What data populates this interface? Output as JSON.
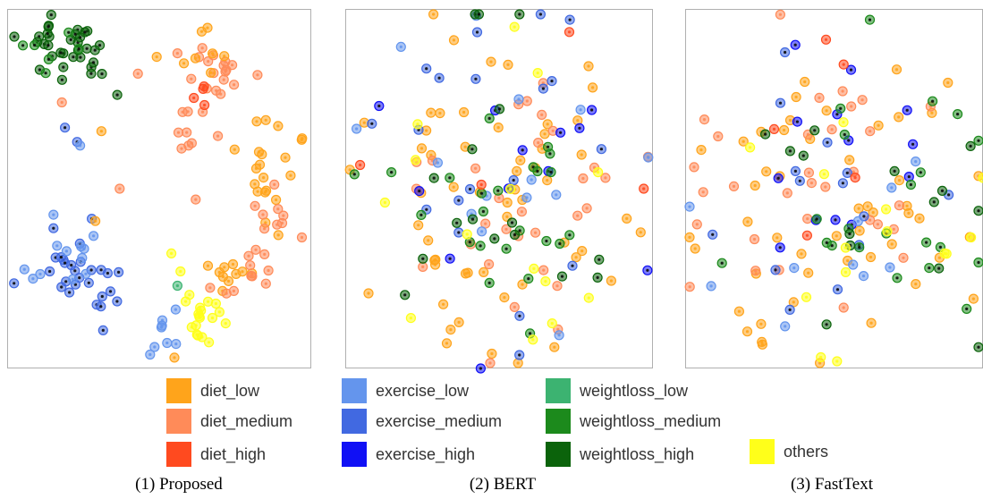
{
  "chart_data": [
    {
      "type": "scatter",
      "panel_caption": "(1) Proposed",
      "clusters": [
        {
          "cls": "weightloss_high",
          "cx": 0.2,
          "cy": 0.12,
          "sx": 0.07,
          "sy": 0.06,
          "n": 34
        },
        {
          "cls": "weightloss_medium",
          "cx": 0.15,
          "cy": 0.14,
          "sx": 0.06,
          "sy": 0.05,
          "n": 6
        },
        {
          "cls": "diet_medium",
          "cx": 0.68,
          "cy": 0.19,
          "sx": 0.06,
          "sy": 0.06,
          "n": 22
        },
        {
          "cls": "diet_low",
          "cx": 0.64,
          "cy": 0.13,
          "sx": 0.06,
          "sy": 0.05,
          "n": 8
        },
        {
          "cls": "diet_high",
          "cx": 0.63,
          "cy": 0.23,
          "sx": 0.03,
          "sy": 0.02,
          "n": 4
        },
        {
          "cls": "diet_low",
          "cx": 0.86,
          "cy": 0.45,
          "sx": 0.05,
          "sy": 0.09,
          "n": 20
        },
        {
          "cls": "diet_medium",
          "cx": 0.88,
          "cy": 0.58,
          "sx": 0.06,
          "sy": 0.07,
          "n": 12
        },
        {
          "cls": "diet_medium",
          "cx": 0.58,
          "cy": 0.36,
          "sx": 0.02,
          "sy": 0.02,
          "n": 5
        },
        {
          "cls": "diet_low",
          "cx": 0.75,
          "cy": 0.74,
          "sx": 0.04,
          "sy": 0.03,
          "n": 10
        },
        {
          "cls": "diet_medium",
          "cx": 0.76,
          "cy": 0.76,
          "sx": 0.04,
          "sy": 0.03,
          "n": 8
        },
        {
          "cls": "exercise_medium",
          "cx": 0.22,
          "cy": 0.71,
          "sx": 0.07,
          "sy": 0.06,
          "n": 22
        },
        {
          "cls": "exercise_low",
          "cx": 0.2,
          "cy": 0.69,
          "sx": 0.08,
          "sy": 0.07,
          "n": 12
        },
        {
          "cls": "exercise_low",
          "cx": 0.5,
          "cy": 0.91,
          "sx": 0.05,
          "sy": 0.04,
          "n": 8
        },
        {
          "cls": "exercise_medium",
          "cx": 0.34,
          "cy": 0.82,
          "sx": 0.05,
          "sy": 0.04,
          "n": 5
        },
        {
          "cls": "others",
          "cx": 0.65,
          "cy": 0.88,
          "sx": 0.04,
          "sy": 0.04,
          "n": 18
        }
      ],
      "singles": [
        {
          "cls": "diet_medium",
          "x": 0.43,
          "y": 0.18
        },
        {
          "cls": "diet_medium",
          "x": 0.18,
          "y": 0.26
        },
        {
          "cls": "diet_low",
          "x": 0.31,
          "y": 0.34
        },
        {
          "cls": "exercise_medium",
          "x": 0.23,
          "y": 0.37
        },
        {
          "cls": "exercise_low",
          "x": 0.24,
          "y": 0.38
        },
        {
          "cls": "diet_medium",
          "x": 0.37,
          "y": 0.5
        },
        {
          "cls": "diet_medium",
          "x": 0.62,
          "y": 0.53
        },
        {
          "cls": "diet_low",
          "x": 0.29,
          "y": 0.59
        },
        {
          "cls": "others",
          "x": 0.54,
          "y": 0.68
        },
        {
          "cls": "others",
          "x": 0.57,
          "y": 0.73
        },
        {
          "cls": "weightloss_low",
          "x": 0.56,
          "y": 0.77
        },
        {
          "cls": "diet_low",
          "x": 0.55,
          "y": 0.97
        },
        {
          "cls": "exercise_medium",
          "x": 0.19,
          "y": 0.33
        },
        {
          "cls": "exercise_medium",
          "x": 0.14,
          "y": 0.73
        }
      ],
      "seed": 11,
      "xlim": [
        0,
        1
      ],
      "ylim": [
        0,
        1
      ],
      "grid": false
    },
    {
      "type": "scatter",
      "panel_caption": "(2) BERT",
      "clusters": [
        {
          "cls": "diet_low",
          "cx": 0.5,
          "cy": 0.5,
          "sx": 0.2,
          "sy": 0.2,
          "n": 55
        },
        {
          "cls": "diet_medium",
          "cx": 0.48,
          "cy": 0.52,
          "sx": 0.2,
          "sy": 0.2,
          "n": 30
        },
        {
          "cls": "exercise_medium",
          "cx": 0.45,
          "cy": 0.4,
          "sx": 0.22,
          "sy": 0.22,
          "n": 18
        },
        {
          "cls": "exercise_low",
          "cx": 0.5,
          "cy": 0.45,
          "sx": 0.22,
          "sy": 0.22,
          "n": 14
        },
        {
          "cls": "exercise_high",
          "cx": 0.5,
          "cy": 0.4,
          "sx": 0.22,
          "sy": 0.22,
          "n": 10
        },
        {
          "cls": "weightloss_medium",
          "cx": 0.52,
          "cy": 0.55,
          "sx": 0.18,
          "sy": 0.2,
          "n": 22
        },
        {
          "cls": "weightloss_high",
          "cx": 0.55,
          "cy": 0.55,
          "sx": 0.2,
          "sy": 0.22,
          "n": 16
        },
        {
          "cls": "others",
          "cx": 0.5,
          "cy": 0.5,
          "sx": 0.25,
          "sy": 0.25,
          "n": 12
        },
        {
          "cls": "diet_high",
          "cx": 0.55,
          "cy": 0.4,
          "sx": 0.2,
          "sy": 0.15,
          "n": 3
        }
      ],
      "singles": [
        {
          "cls": "others",
          "x": 0.55,
          "y": 0.05
        },
        {
          "cls": "exercise_medium",
          "x": 0.73,
          "y": 0.03
        },
        {
          "cls": "weightloss_medium",
          "x": 0.03,
          "y": 0.46
        },
        {
          "cls": "diet_high",
          "x": 0.97,
          "y": 0.5
        },
        {
          "cls": "exercise_high",
          "x": 0.44,
          "y": 1.0
        },
        {
          "cls": "exercise_high",
          "x": 0.11,
          "y": 0.27
        },
        {
          "cls": "diet_low",
          "x": 0.33,
          "y": 0.93
        },
        {
          "cls": "others",
          "x": 0.61,
          "y": 0.92
        }
      ],
      "seed": 23,
      "xlim": [
        0,
        1
      ],
      "ylim": [
        0,
        1
      ],
      "grid": false
    },
    {
      "type": "scatter",
      "panel_caption": "(3) FastText",
      "clusters": [
        {
          "cls": "diet_low",
          "cx": 0.5,
          "cy": 0.55,
          "sx": 0.22,
          "sy": 0.2,
          "n": 50
        },
        {
          "cls": "diet_medium",
          "cx": 0.45,
          "cy": 0.5,
          "sx": 0.25,
          "sy": 0.22,
          "n": 30
        },
        {
          "cls": "exercise_medium",
          "cx": 0.5,
          "cy": 0.55,
          "sx": 0.22,
          "sy": 0.18,
          "n": 14
        },
        {
          "cls": "exercise_high",
          "cx": 0.5,
          "cy": 0.5,
          "sx": 0.22,
          "sy": 0.18,
          "n": 12
        },
        {
          "cls": "exercise_low",
          "cx": 0.45,
          "cy": 0.6,
          "sx": 0.22,
          "sy": 0.18,
          "n": 10
        },
        {
          "cls": "weightloss_medium",
          "cx": 0.6,
          "cy": 0.6,
          "sx": 0.2,
          "sy": 0.18,
          "n": 20
        },
        {
          "cls": "weightloss_high",
          "cx": 0.6,
          "cy": 0.55,
          "sx": 0.2,
          "sy": 0.22,
          "n": 14
        },
        {
          "cls": "others",
          "cx": 0.55,
          "cy": 0.6,
          "sx": 0.22,
          "sy": 0.2,
          "n": 12
        },
        {
          "cls": "diet_high",
          "cx": 0.55,
          "cy": 0.4,
          "sx": 0.2,
          "sy": 0.15,
          "n": 5
        }
      ],
      "singles": [
        {
          "cls": "weightloss_medium",
          "x": 0.62,
          "y": 0.03
        },
        {
          "cls": "exercise_high",
          "x": 0.37,
          "y": 0.1
        },
        {
          "cls": "diet_medium",
          "x": 0.03,
          "y": 0.44
        },
        {
          "cls": "others",
          "x": 0.51,
          "y": 0.98
        },
        {
          "cls": "others",
          "x": 1.0,
          "y": 0.47
        }
      ],
      "seed": 37,
      "xlim": [
        0,
        1
      ],
      "ylim": [
        0,
        1
      ],
      "grid": false
    }
  ],
  "legend": {
    "items": [
      {
        "label": "diet_low",
        "color": "#FFA41B"
      },
      {
        "label": "diet_medium",
        "color": "#FF8B59"
      },
      {
        "label": "diet_high",
        "color": "#FF4A1F"
      },
      {
        "label": "exercise_low",
        "color": "#6495ED"
      },
      {
        "label": "exercise_medium",
        "color": "#4169E1"
      },
      {
        "label": "exercise_high",
        "color": "#1010F5"
      },
      {
        "label": "weightloss_low",
        "color": "#3CB371"
      },
      {
        "label": "weightloss_medium",
        "color": "#1C8A1C"
      },
      {
        "label": "weightloss_high",
        "color": "#0B630B"
      },
      {
        "label": "others",
        "color": "#FFFF1A"
      }
    ]
  },
  "captions": [
    "(1) Proposed",
    "(2) BERT",
    "(3) FastText"
  ]
}
